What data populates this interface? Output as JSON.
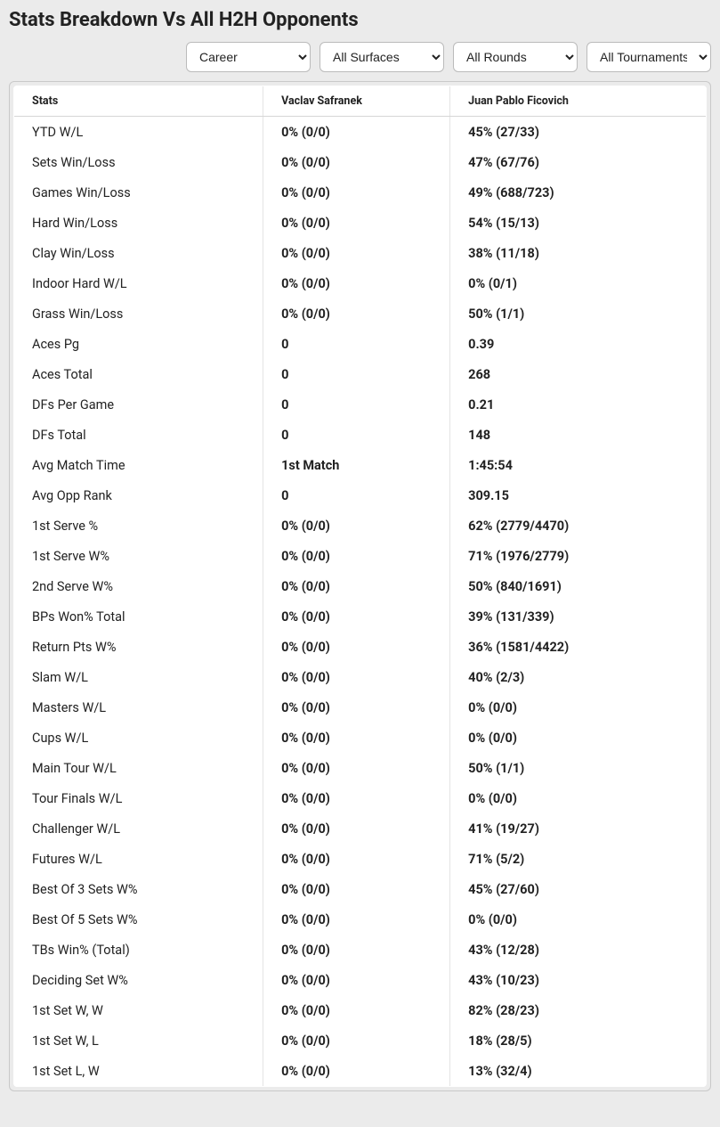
{
  "title": "Stats Breakdown Vs All H2H Opponents",
  "filters": {
    "career": "Career",
    "surfaces": "All Surfaces",
    "rounds": "All Rounds",
    "tournaments": "All Tournaments"
  },
  "columns": {
    "stats": "Stats",
    "p1": "Vaclav Safranek",
    "p2": "Juan Pablo Ficovich"
  },
  "rows": [
    {
      "label": "YTD W/L",
      "p1": "0% (0/0)",
      "p2": "45% (27/33)"
    },
    {
      "label": "Sets Win/Loss",
      "p1": "0% (0/0)",
      "p2": "47% (67/76)"
    },
    {
      "label": "Games Win/Loss",
      "p1": "0% (0/0)",
      "p2": "49% (688/723)"
    },
    {
      "label": "Hard Win/Loss",
      "p1": "0% (0/0)",
      "p2": "54% (15/13)"
    },
    {
      "label": "Clay Win/Loss",
      "p1": "0% (0/0)",
      "p2": "38% (11/18)"
    },
    {
      "label": "Indoor Hard W/L",
      "p1": "0% (0/0)",
      "p2": "0% (0/1)"
    },
    {
      "label": "Grass Win/Loss",
      "p1": "0% (0/0)",
      "p2": "50% (1/1)"
    },
    {
      "label": "Aces Pg",
      "p1": "0",
      "p2": "0.39"
    },
    {
      "label": "Aces Total",
      "p1": "0",
      "p2": "268"
    },
    {
      "label": "DFs Per Game",
      "p1": "0",
      "p2": "0.21"
    },
    {
      "label": "DFs Total",
      "p1": "0",
      "p2": "148"
    },
    {
      "label": "Avg Match Time",
      "p1": "1st Match",
      "p2": "1:45:54"
    },
    {
      "label": "Avg Opp Rank",
      "p1": "0",
      "p2": "309.15"
    },
    {
      "label": "1st Serve %",
      "p1": "0% (0/0)",
      "p2": "62% (2779/4470)"
    },
    {
      "label": "1st Serve W%",
      "p1": "0% (0/0)",
      "p2": "71% (1976/2779)"
    },
    {
      "label": "2nd Serve W%",
      "p1": "0% (0/0)",
      "p2": "50% (840/1691)"
    },
    {
      "label": "BPs Won% Total",
      "p1": "0% (0/0)",
      "p2": "39% (131/339)"
    },
    {
      "label": "Return Pts W%",
      "p1": "0% (0/0)",
      "p2": "36% (1581/4422)"
    },
    {
      "label": "Slam W/L",
      "p1": "0% (0/0)",
      "p2": "40% (2/3)"
    },
    {
      "label": "Masters W/L",
      "p1": "0% (0/0)",
      "p2": "0% (0/0)"
    },
    {
      "label": "Cups W/L",
      "p1": "0% (0/0)",
      "p2": "0% (0/0)"
    },
    {
      "label": "Main Tour W/L",
      "p1": "0% (0/0)",
      "p2": "50% (1/1)"
    },
    {
      "label": "Tour Finals W/L",
      "p1": "0% (0/0)",
      "p2": "0% (0/0)"
    },
    {
      "label": "Challenger W/L",
      "p1": "0% (0/0)",
      "p2": "41% (19/27)"
    },
    {
      "label": "Futures W/L",
      "p1": "0% (0/0)",
      "p2": "71% (5/2)"
    },
    {
      "label": "Best Of 3 Sets W%",
      "p1": "0% (0/0)",
      "p2": "45% (27/60)"
    },
    {
      "label": "Best Of 5 Sets W%",
      "p1": "0% (0/0)",
      "p2": "0% (0/0)"
    },
    {
      "label": "TBs Win% (Total)",
      "p1": "0% (0/0)",
      "p2": "43% (12/28)"
    },
    {
      "label": "Deciding Set W%",
      "p1": "0% (0/0)",
      "p2": "43% (10/23)"
    },
    {
      "label": "1st Set W, W",
      "p1": "0% (0/0)",
      "p2": "82% (28/23)"
    },
    {
      "label": "1st Set W, L",
      "p1": "0% (0/0)",
      "p2": "18% (28/5)"
    },
    {
      "label": "1st Set L, W",
      "p1": "0% (0/0)",
      "p2": "13% (32/4)"
    }
  ]
}
